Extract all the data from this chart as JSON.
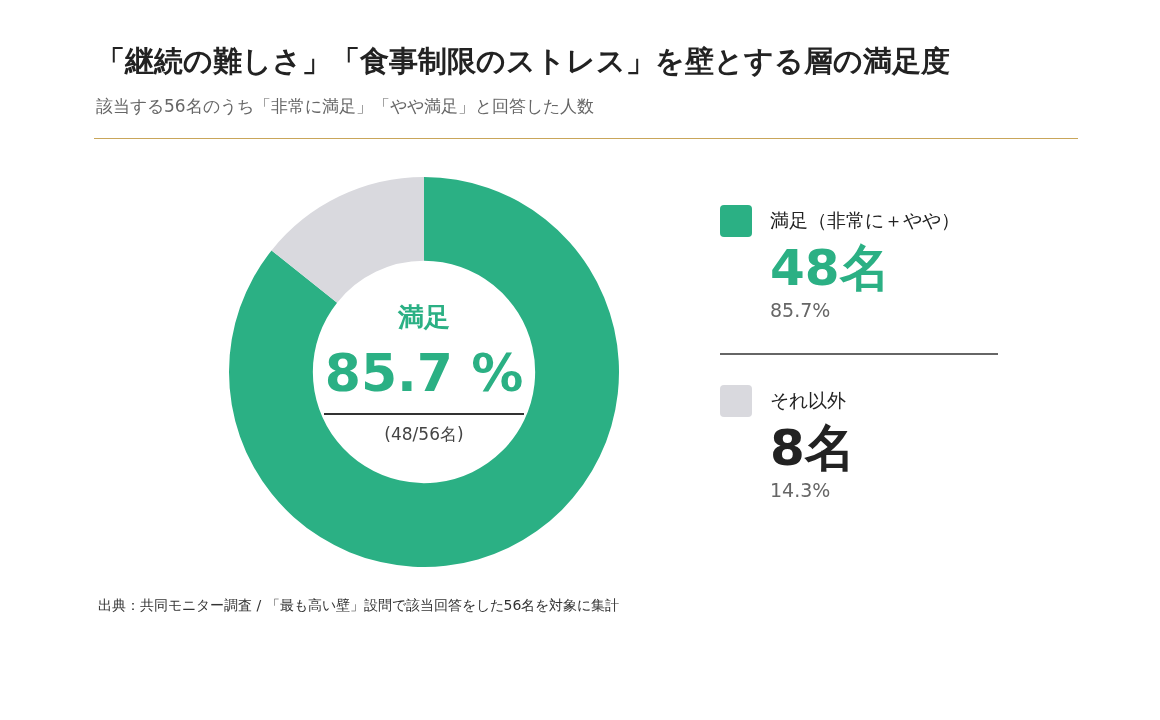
{
  "chart_data": {
    "type": "donut",
    "title": "「継続の難しさ」「食事制限のストレス」を壁とする層の満足度",
    "subtitle": "該当する56名のうち「非常に満足」「やや満足」と回答した人数",
    "categories": [
      "満足（非常に＋やや）",
      "それ以外"
    ],
    "values": [
      48,
      8
    ],
    "colors": [
      "#2bb084",
      "#d9d9de"
    ],
    "value_labels": [
      "48名",
      "8名"
    ],
    "legend": "right",
    "annotations": [
      "満足",
      "85.7 %",
      "(48/56名)",
      "85.7%",
      "14.3%",
      "出典：共同モニター調査 / 「最も高い壁」設問で該当回答をした56名を対象に集計"
    ]
  }
}
